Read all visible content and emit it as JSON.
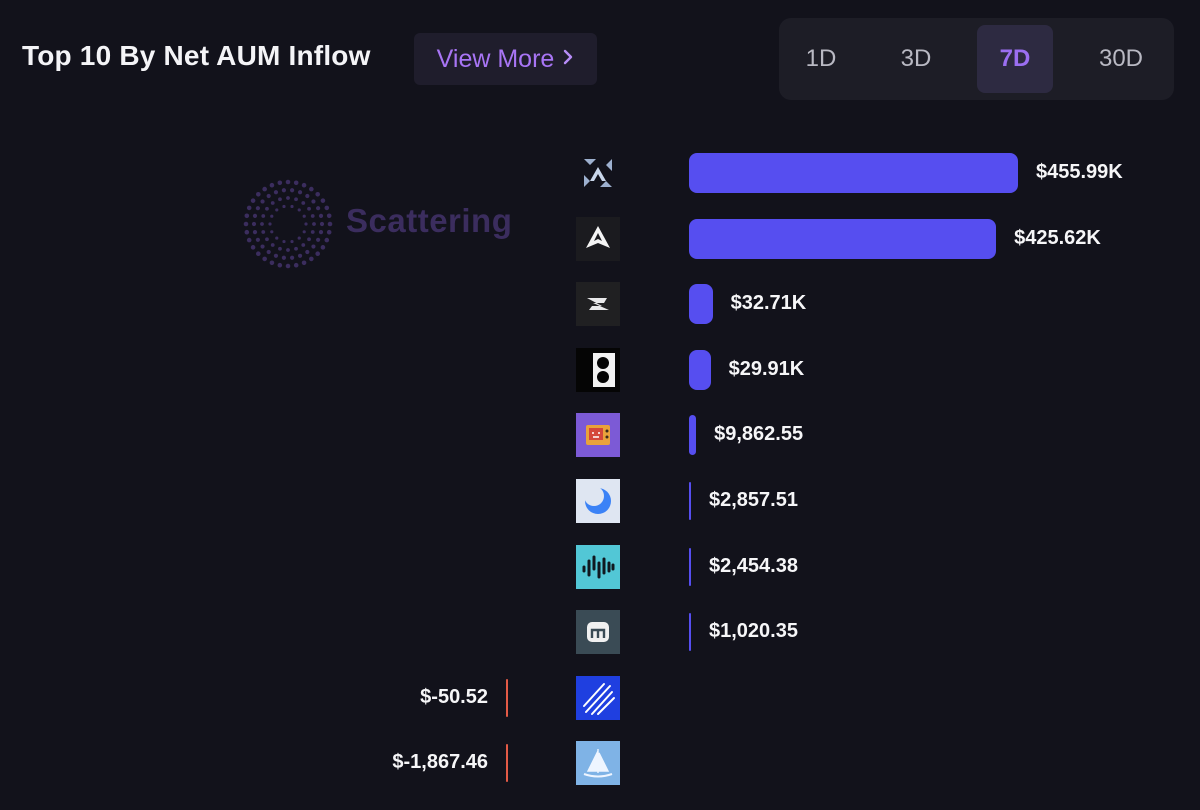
{
  "header": {
    "title": "Top 10 By Net AUM Inflow",
    "view_more_label": "View More",
    "view_more_icon": "chevron-right-icon"
  },
  "time_range": {
    "options": [
      "1D",
      "3D",
      "7D",
      "30D"
    ],
    "selected": "7D"
  },
  "watermark": {
    "text": "Scattering"
  },
  "colors": {
    "positive_bar": "#564ef0",
    "negative_bar": "#e35a46",
    "accent": "#9b6ff1",
    "background": "#12121b"
  },
  "chart_data": {
    "type": "bar",
    "orientation": "horizontal",
    "title": "Top 10 By Net AUM Inflow",
    "categories": [
      "logo-1",
      "logo-2",
      "logo-3",
      "logo-4",
      "logo-5",
      "logo-6",
      "logo-7",
      "logo-8",
      "logo-9",
      "logo-10"
    ],
    "values": [
      455990,
      425620,
      32710,
      29910,
      9862.55,
      2857.51,
      2454.38,
      1020.35,
      -50.52,
      -1867.46
    ],
    "value_labels": [
      "$455.99K",
      "$425.62K",
      "$32.71K",
      "$29.91K",
      "$9,862.55",
      "$2,857.51",
      "$2,454.38",
      "$1,020.35",
      "$-50.52",
      "$-1,867.46"
    ],
    "logo_icons": [
      "arrow-cross-icon",
      "triangle-star-icon",
      "slash-s-icon",
      "dots-block-icon",
      "retro-tv-icon",
      "blue-moon-icon",
      "wave-s-icon",
      "gate-icon",
      "speed-lines-icon",
      "sailboat-icon"
    ]
  }
}
